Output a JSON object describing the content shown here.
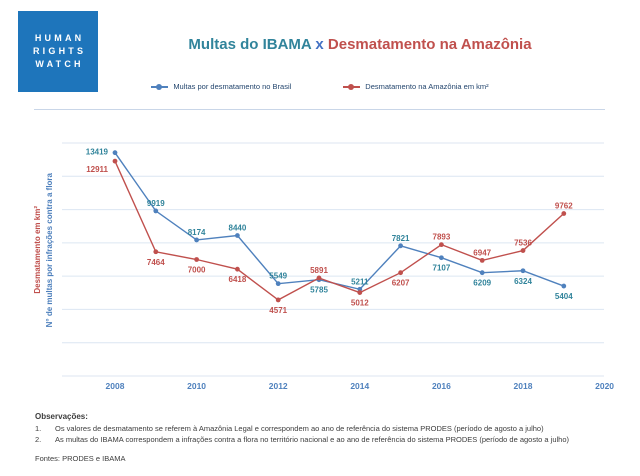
{
  "colors": {
    "teal": "#31849B",
    "title_x_blue": "#4472C4",
    "blue_line": "#4F81BD",
    "red_line": "#C0504D",
    "axis_blue": "#4F81BD",
    "legend_text": "#24466E",
    "logo_blue": "#1E75BB",
    "grid": "#DCE6F2",
    "divider": "#C9D6E8",
    "text_dark": "#3D3D3D"
  },
  "logo": {
    "lines": [
      "HUMAN",
      "RIGHTS",
      "WATCH"
    ]
  },
  "header": {
    "title_part1": "Multas do IBAMA",
    "title_x": "x",
    "title_part2": "Desmatamento na Amazônia"
  },
  "legend": [
    {
      "label": "Multas por desmatamento no Brasil"
    },
    {
      "label": "Desmatamento na Amazônia em km²"
    }
  ],
  "chart_data": {
    "type": "line",
    "title": "Multas do IBAMA x Desmatamento na Amazônia",
    "x": [
      2008,
      2009,
      2010,
      2011,
      2012,
      2013,
      2014,
      2015,
      2016,
      2017,
      2018,
      2019
    ],
    "series": [
      {
        "name": "Multas por desmatamento no Brasil",
        "color": "#4F81BD",
        "label_color": "#31849B",
        "values": [
          13419,
          9919,
          8174,
          8440,
          5549,
          5785,
          5211,
          7821,
          7107,
          6209,
          6324,
          5404
        ]
      },
      {
        "name": "Desmatamento na Amazônia em km²",
        "color": "#C0504D",
        "label_color": "#C0504D",
        "values": [
          12911,
          7464,
          7000,
          6418,
          4571,
          5891,
          5012,
          6207,
          7893,
          6947,
          7536,
          9762
        ]
      }
    ],
    "xticks": [
      2008,
      2010,
      2012,
      2014,
      2016,
      2018,
      2020
    ],
    "ylim": [
      0,
      14000
    ],
    "grid_interval": 2000,
    "grid": true,
    "data_labels": true,
    "legend_position": "top-center",
    "ylabel_red": "Desmatamento em km²",
    "ylabel_blue": "N° de multas por infrações contra a flora",
    "xlabel": "",
    "ylabel": ""
  },
  "footer": {
    "observations_title": "Observações:",
    "observations": [
      {
        "num": "1.",
        "text": "Os valores de desmatamento se referem à Amazônia Legal e correspondem ao ano de referência do sistema PRODES (período de agosto a julho)"
      },
      {
        "num": "2.",
        "text": "As multas do IBAMA correspondem a infrações contra a flora no território nacional e ao ano de referência do sistema PRODES (período de agosto a julho)"
      }
    ],
    "sources": "Fontes: PRODES e IBAMA"
  }
}
